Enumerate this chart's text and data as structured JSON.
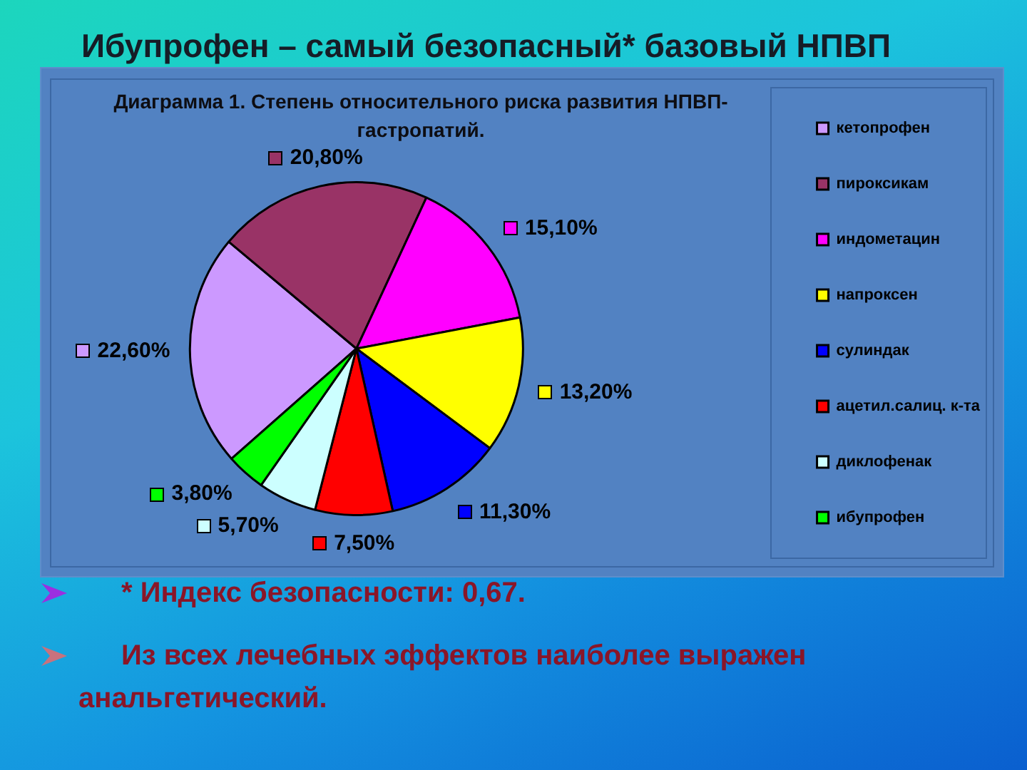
{
  "chart_data": {
    "type": "pie",
    "title": "Ибупрофен – самый безопасный* базовый НПВП",
    "subtitle": "Диаграмма 1. Степень относительного риска развития НПВП-гастропатий.",
    "categories": [
      "кетопрофен",
      "пироксикам",
      "индометацин",
      "напроксен",
      "сулиндак",
      "ацетил.салиц. к-та",
      "диклофенак",
      "ибупрофен"
    ],
    "values": [
      22.6,
      20.8,
      15.1,
      13.2,
      11.3,
      7.5,
      5.7,
      3.8
    ],
    "colors": [
      "#cc99ff",
      "#993366",
      "#ff00ff",
      "#ffff00",
      "#0000ff",
      "#ff0000",
      "#ccffff",
      "#00ff00"
    ],
    "value_labels": [
      "22,60%",
      "20,80%",
      "15,10%",
      "13,20%",
      "11,30%",
      "7,50%",
      "5,70%",
      "3,80%"
    ],
    "legend": "right",
    "annotations": [
      "* Индекс безопасности: 0,67.",
      "Из всех лечебных эффектов наиболее выражен анальгетический."
    ]
  }
}
